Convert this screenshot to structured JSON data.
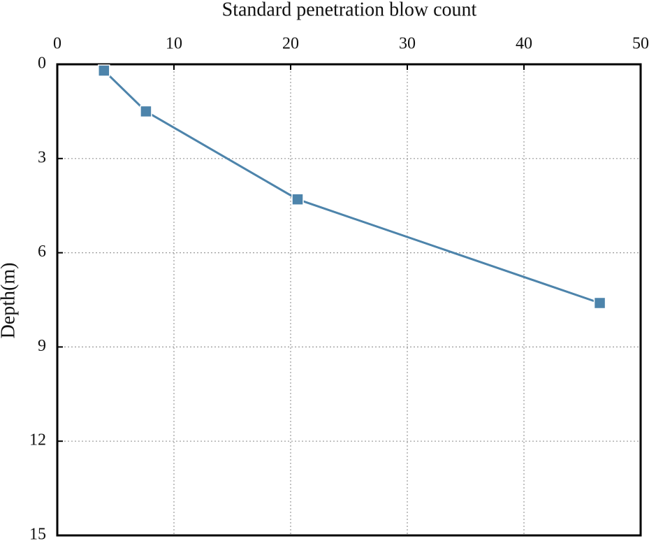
{
  "chart_data": {
    "type": "line",
    "x_label": "Standard penetration blow count",
    "y_label": "Depth(m)",
    "x": [
      4,
      7.6,
      20.6,
      46.5
    ],
    "series": [
      {
        "color": "#4d84ab",
        "values": [
          0.2,
          1.5,
          4.3,
          7.6
        ]
      }
    ],
    "xlim": [
      0,
      50
    ],
    "xticks": [
      0,
      10,
      20,
      30,
      40,
      50
    ],
    "ylim": [
      0,
      15
    ],
    "yticks": [
      0,
      3,
      6,
      9,
      12,
      15
    ],
    "y_inverted": true,
    "x_axis_position": "top",
    "grid": true
  }
}
